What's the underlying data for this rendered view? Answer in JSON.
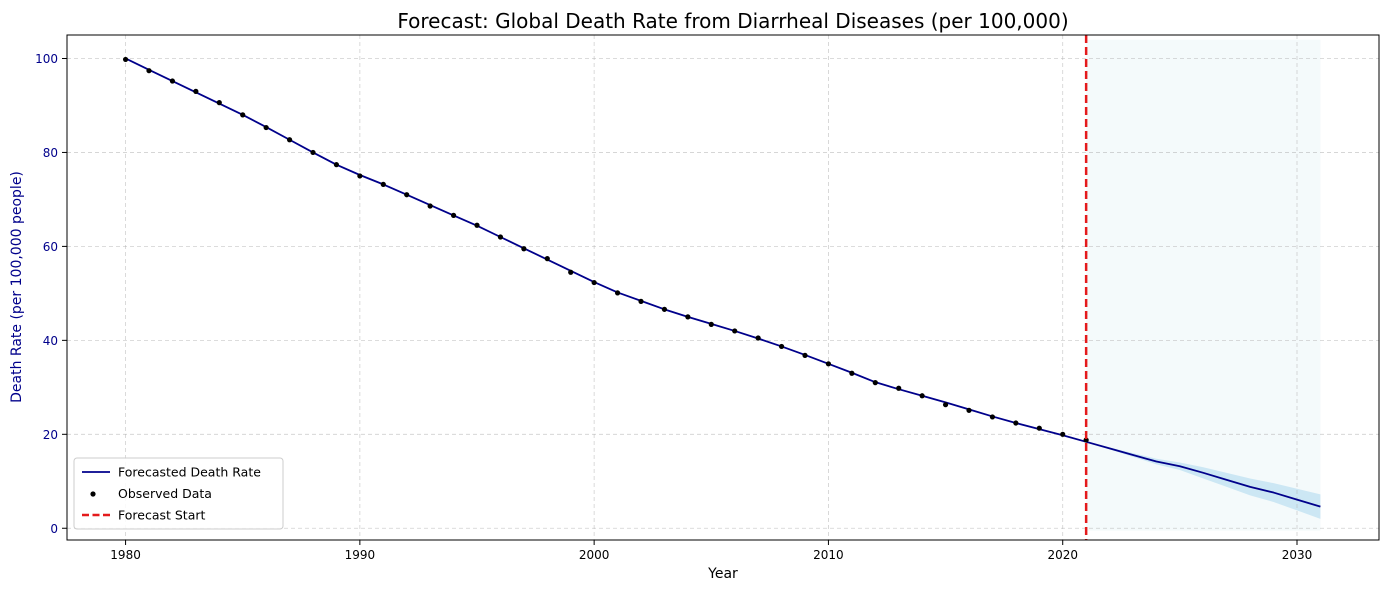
{
  "chart_data": {
    "type": "line",
    "title": "Forecast: Global Death Rate from Diarrheal Diseases (per 100,000)",
    "xlabel": "Year",
    "ylabel": "Death Rate (per 100,000 people)",
    "xlim": [
      1977.5,
      2033.5
    ],
    "ylim": [
      -2.5,
      105
    ],
    "xticks": [
      1980,
      1990,
      2000,
      2010,
      2020,
      2030
    ],
    "yticks": [
      0,
      20,
      40,
      60,
      80,
      100
    ],
    "grid": true,
    "legend_placement": "lower-left",
    "forecast_start": 2021,
    "forecast_band_range": [
      2021,
      2031
    ],
    "series": [
      {
        "name": "Forecasted Death Rate",
        "kind": "line",
        "color": "#00008b",
        "x": [
          1980,
          1981,
          1982,
          1983,
          1984,
          1985,
          1986,
          1987,
          1988,
          1989,
          1990,
          1991,
          1992,
          1993,
          1994,
          1995,
          1996,
          1997,
          1998,
          1999,
          2000,
          2001,
          2002,
          2003,
          2004,
          2005,
          2006,
          2007,
          2008,
          2009,
          2010,
          2011,
          2012,
          2013,
          2014,
          2015,
          2016,
          2017,
          2018,
          2019,
          2020,
          2021,
          2022,
          2023,
          2024,
          2025,
          2026,
          2027,
          2028,
          2029,
          2030,
          2031
        ],
        "values": [
          100,
          97.6,
          95.2,
          92.8,
          90.4,
          88.0,
          85.4,
          82.7,
          80.0,
          77.4,
          75.2,
          73.2,
          71.0,
          68.8,
          66.6,
          64.4,
          62.0,
          59.6,
          57.2,
          54.8,
          52.4,
          50.2,
          48.4,
          46.6,
          45.0,
          43.5,
          42.0,
          40.4,
          38.7,
          36.9,
          35.0,
          33.1,
          31.1,
          29.6,
          28.2,
          26.8,
          25.3,
          23.8,
          22.4,
          21.1,
          19.8,
          18.4,
          17.0,
          15.6,
          14.2,
          13.2,
          11.8,
          10.3,
          8.8,
          7.6,
          6.1,
          4.6
        ]
      },
      {
        "name": "Observed Data",
        "kind": "scatter",
        "color": "#000000",
        "x": [
          1980,
          1981,
          1982,
          1983,
          1984,
          1985,
          1986,
          1987,
          1988,
          1989,
          1990,
          1991,
          1992,
          1993,
          1994,
          1995,
          1996,
          1997,
          1998,
          1999,
          2000,
          2001,
          2002,
          2003,
          2004,
          2005,
          2006,
          2007,
          2008,
          2009,
          2010,
          2011,
          2012,
          2013,
          2014,
          2015,
          2016,
          2017,
          2018,
          2019,
          2020,
          2021
        ],
        "values": [
          99.8,
          97.4,
          95.2,
          93.0,
          90.6,
          88.0,
          85.3,
          82.7,
          80.0,
          77.4,
          75.0,
          73.2,
          71.0,
          68.6,
          66.6,
          64.5,
          62.0,
          59.5,
          57.4,
          54.5,
          52.3,
          50.1,
          48.3,
          46.6,
          45.0,
          43.4,
          42.0,
          40.5,
          38.7,
          36.8,
          35.0,
          33.0,
          31.0,
          29.8,
          28.2,
          26.3,
          25.1,
          23.7,
          22.4,
          21.3,
          20.0,
          18.8
        ]
      },
      {
        "name": "Forecast Start",
        "kind": "vline",
        "color": "#e41a1c",
        "x": 2021
      }
    ],
    "confidence_band": {
      "x": [
        2021,
        2022,
        2023,
        2024,
        2025,
        2026,
        2027,
        2028,
        2029,
        2030,
        2031
      ],
      "lower": [
        18.4,
        16.8,
        15.2,
        13.6,
        12.4,
        10.6,
        8.8,
        7.0,
        5.6,
        3.8,
        2.0
      ],
      "upper": [
        18.4,
        17.2,
        16.0,
        14.8,
        14.0,
        13.0,
        11.8,
        10.6,
        9.6,
        8.4,
        7.2
      ],
      "color": "#bfe0f2"
    },
    "forecast_region_color": "#f4fafb",
    "colors": {
      "line": "#00008b",
      "observed": "#000000",
      "forecast_start": "#e41a1c",
      "ylabel_color": "#00008b",
      "grid": "#b0b0b0"
    }
  }
}
